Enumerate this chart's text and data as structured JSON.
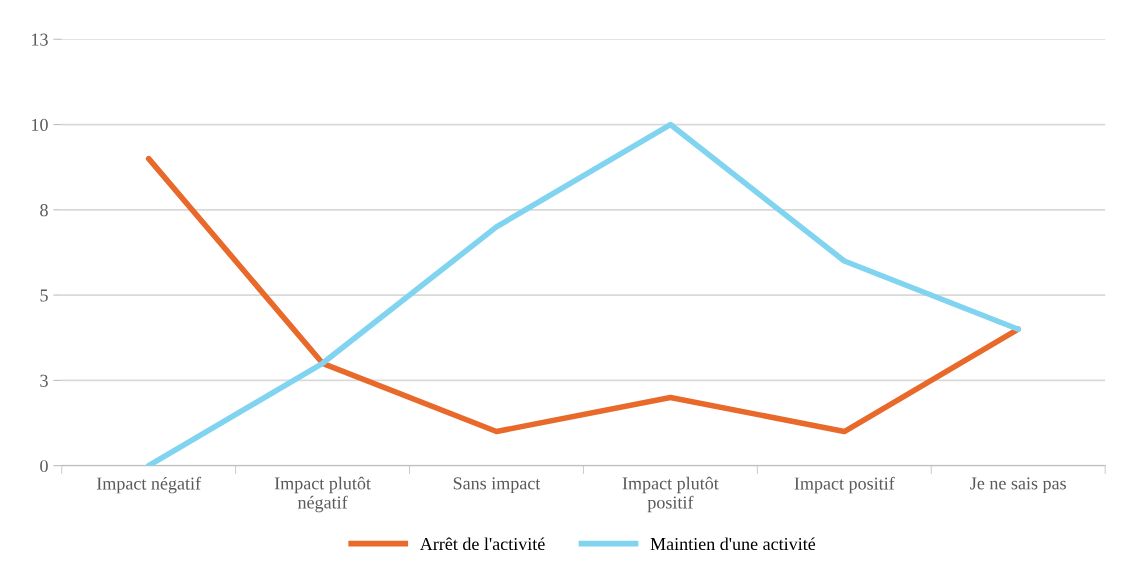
{
  "chart_data": {
    "type": "line",
    "categories": [
      "Impact négatif",
      "Impact plutôt\nnégatif",
      "Sans impact",
      "Impact plutôt\npositif",
      "Impact positif",
      "Je ne sais pas"
    ],
    "series": [
      {
        "name": "Arrêt de l'activité",
        "color": "#e8692a",
        "values": [
          9,
          3,
          1,
          2,
          1,
          4
        ]
      },
      {
        "name": "Maintien d'une activité",
        "color": "#80d4f0",
        "values": [
          0,
          3,
          7,
          10,
          6,
          4
        ]
      }
    ],
    "ylim": [
      0,
      12.5
    ],
    "yticks": [
      0,
      {
        "value": 2.5,
        "label": "3"
      },
      5,
      {
        "value": 7.5,
        "label": "8"
      },
      10,
      {
        "value": 12.5,
        "label": "13"
      }
    ],
    "grid": "y",
    "legend": "bottom",
    "marker": "none",
    "line_style": "solid"
  }
}
